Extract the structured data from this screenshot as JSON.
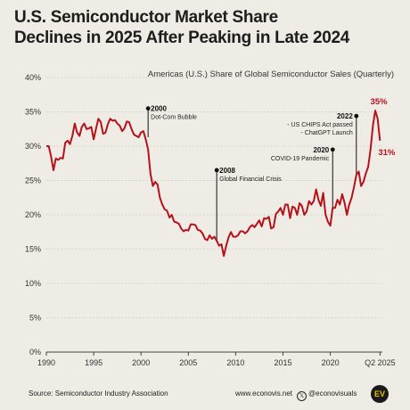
{
  "title_line1": "U.S. Semiconductor Market Share",
  "title_line2": "Declines in 2025 After Peaking in Late 2024",
  "subtitle": "Americas (U.S.) Share of Global Semiconductor Sales (Quarterly)",
  "footer": {
    "source": "Source: Semiconductor Industry Association",
    "website": "www.econovis.net",
    "social": "@econovisuals",
    "social_icon": "x-icon",
    "logo_text": "EV"
  },
  "colors": {
    "line": "#b5121b",
    "annotation": "#111111",
    "grid": "#cfcac2",
    "background": "#efece6"
  },
  "chart_data": {
    "type": "line",
    "title": "U.S. Semiconductor Market Share Declines in 2025 After Peaking in Late 2024",
    "subtitle": "Americas (U.S.) Share of Global Semiconductor Sales (Quarterly)",
    "xlabel": "",
    "ylabel": "",
    "xlim": [
      1990,
      2025.5
    ],
    "ylim": [
      0,
      40
    ],
    "y_ticks": [
      "0%",
      "5%",
      "10%",
      "15%",
      "20%",
      "25%",
      "30%",
      "35%",
      "40%"
    ],
    "x_ticks": [
      "1990",
      "1995",
      "2000",
      "2005",
      "2010",
      "2015",
      "2020",
      "Q2 2025"
    ],
    "grid": true,
    "series": [
      {
        "values": [
          [
            1990.0,
            30.0
          ],
          [
            1990.25,
            30.0
          ],
          [
            1990.5,
            28.5
          ],
          [
            1990.75,
            26.5
          ],
          [
            1991.0,
            28.2
          ],
          [
            1991.25,
            28.0
          ],
          [
            1991.5,
            28.3
          ],
          [
            1991.75,
            28.2
          ],
          [
            1992.0,
            30.5
          ],
          [
            1992.25,
            30.8
          ],
          [
            1992.5,
            30.3
          ],
          [
            1992.75,
            31.5
          ],
          [
            1993.0,
            33.3
          ],
          [
            1993.25,
            32.0
          ],
          [
            1993.5,
            31.5
          ],
          [
            1993.75,
            32.8
          ],
          [
            1994.0,
            33.3
          ],
          [
            1994.25,
            32.5
          ],
          [
            1994.5,
            32.6
          ],
          [
            1994.75,
            32.8
          ],
          [
            1995.0,
            31.0
          ],
          [
            1995.25,
            32.6
          ],
          [
            1995.5,
            34.0
          ],
          [
            1995.75,
            33.5
          ],
          [
            1996.0,
            31.8
          ],
          [
            1996.25,
            32.0
          ],
          [
            1996.5,
            33.2
          ],
          [
            1996.75,
            34.0
          ],
          [
            1997.0,
            33.7
          ],
          [
            1997.25,
            33.8
          ],
          [
            1997.5,
            33.3
          ],
          [
            1997.75,
            33.0
          ],
          [
            1998.0,
            32.2
          ],
          [
            1998.25,
            32.6
          ],
          [
            1998.5,
            33.6
          ],
          [
            1998.75,
            33.5
          ],
          [
            1999.0,
            32.5
          ],
          [
            1999.25,
            31.7
          ],
          [
            1999.5,
            31.5
          ],
          [
            1999.75,
            31.3
          ],
          [
            2000.0,
            32.0
          ],
          [
            2000.25,
            32.2
          ],
          [
            2000.5,
            31.0
          ],
          [
            2000.75,
            29.5
          ],
          [
            2001.0,
            26.0
          ],
          [
            2001.25,
            24.2
          ],
          [
            2001.5,
            24.8
          ],
          [
            2001.75,
            24.4
          ],
          [
            2002.0,
            22.5
          ],
          [
            2002.25,
            21.5
          ],
          [
            2002.5,
            20.8
          ],
          [
            2002.75,
            20.6
          ],
          [
            2003.0,
            19.6
          ],
          [
            2003.25,
            20.0
          ],
          [
            2003.5,
            19.0
          ],
          [
            2003.75,
            18.9
          ],
          [
            2004.0,
            18.7
          ],
          [
            2004.25,
            18.0
          ],
          [
            2004.5,
            17.6
          ],
          [
            2004.75,
            17.8
          ],
          [
            2005.0,
            17.7
          ],
          [
            2005.25,
            18.6
          ],
          [
            2005.5,
            18.6
          ],
          [
            2005.75,
            18.5
          ],
          [
            2006.0,
            17.8
          ],
          [
            2006.25,
            17.7
          ],
          [
            2006.5,
            17.3
          ],
          [
            2006.75,
            16.5
          ],
          [
            2007.0,
            16.3
          ],
          [
            2007.25,
            17.0
          ],
          [
            2007.5,
            16.5
          ],
          [
            2007.75,
            16.8
          ],
          [
            2008.0,
            16.2
          ],
          [
            2008.25,
            15.5
          ],
          [
            2008.5,
            15.7
          ],
          [
            2008.75,
            14.0
          ],
          [
            2009.0,
            15.5
          ],
          [
            2009.25,
            16.7
          ],
          [
            2009.5,
            17.5
          ],
          [
            2009.75,
            16.8
          ],
          [
            2010.0,
            16.8
          ],
          [
            2010.25,
            17.0
          ],
          [
            2010.5,
            17.6
          ],
          [
            2010.75,
            17.6
          ],
          [
            2011.0,
            17.3
          ],
          [
            2011.25,
            17.6
          ],
          [
            2011.5,
            18.2
          ],
          [
            2011.75,
            18.5
          ],
          [
            2012.0,
            18.2
          ],
          [
            2012.25,
            18.7
          ],
          [
            2012.5,
            19.2
          ],
          [
            2012.75,
            18.3
          ],
          [
            2013.0,
            19.5
          ],
          [
            2013.25,
            19.4
          ],
          [
            2013.5,
            19.7
          ],
          [
            2013.75,
            18.0
          ],
          [
            2014.0,
            18.2
          ],
          [
            2014.25,
            20.1
          ],
          [
            2014.5,
            20.5
          ],
          [
            2014.75,
            21.0
          ],
          [
            2015.0,
            20.0
          ],
          [
            2015.25,
            21.5
          ],
          [
            2015.5,
            21.5
          ],
          [
            2015.75,
            19.5
          ],
          [
            2016.0,
            21.2
          ],
          [
            2016.25,
            21.0
          ],
          [
            2016.5,
            20.0
          ],
          [
            2016.75,
            21.7
          ],
          [
            2017.0,
            21.3
          ],
          [
            2017.25,
            20.0
          ],
          [
            2017.5,
            20.5
          ],
          [
            2017.75,
            22.0
          ],
          [
            2018.0,
            21.5
          ],
          [
            2018.25,
            22.0
          ],
          [
            2018.5,
            23.7
          ],
          [
            2018.75,
            22.2
          ],
          [
            2019.0,
            21.3
          ],
          [
            2019.25,
            23.2
          ],
          [
            2019.5,
            20.0
          ],
          [
            2019.75,
            19.0
          ],
          [
            2020.0,
            18.4
          ],
          [
            2020.25,
            21.0
          ],
          [
            2020.5,
            21.0
          ],
          [
            2020.75,
            22.2
          ],
          [
            2021.0,
            21.5
          ],
          [
            2021.25,
            23.0
          ],
          [
            2021.5,
            21.8
          ],
          [
            2021.75,
            20.0
          ],
          [
            2022.0,
            21.5
          ],
          [
            2022.25,
            22.5
          ],
          [
            2022.5,
            24.0
          ],
          [
            2022.75,
            25.8
          ],
          [
            2023.0,
            26.3
          ],
          [
            2023.25,
            24.2
          ],
          [
            2023.5,
            24.8
          ],
          [
            2023.75,
            26.0
          ],
          [
            2024.0,
            27.0
          ],
          [
            2024.25,
            29.5
          ],
          [
            2024.5,
            33.0
          ],
          [
            2024.75,
            35.2
          ],
          [
            2025.0,
            34.0
          ],
          [
            2025.25,
            30.8
          ]
        ]
      }
    ],
    "annotations": [
      {
        "year_label": "2000",
        "text": [
          "Dot-Com Bubble"
        ],
        "x": 2000.75,
        "y_top": 35.5,
        "y_bottom": 31.3,
        "side": "right"
      },
      {
        "year_label": "2008",
        "text": [
          "Global Financial Crisis"
        ],
        "x": 2008,
        "y_top": 26.5,
        "y_bottom": 16.2,
        "side": "right"
      },
      {
        "year_label": "2020",
        "text": [
          "COVID-19 Pandemic"
        ],
        "x": 2020.25,
        "y_top": 29.5,
        "y_bottom": 21.0,
        "side": "left"
      },
      {
        "year_label": "2022",
        "text": [
          "- US CHIPS Act passed",
          "- ChatGPT Launch"
        ],
        "x": 2022.75,
        "y_top": 34.4,
        "y_bottom": 25.8,
        "side": "left"
      }
    ],
    "end_labels": [
      {
        "text": "35%",
        "x": 2024.75,
        "y": 35.2,
        "position": "above"
      },
      {
        "text": "31%",
        "x": 2025.25,
        "y": 30.8,
        "position": "right"
      }
    ]
  }
}
